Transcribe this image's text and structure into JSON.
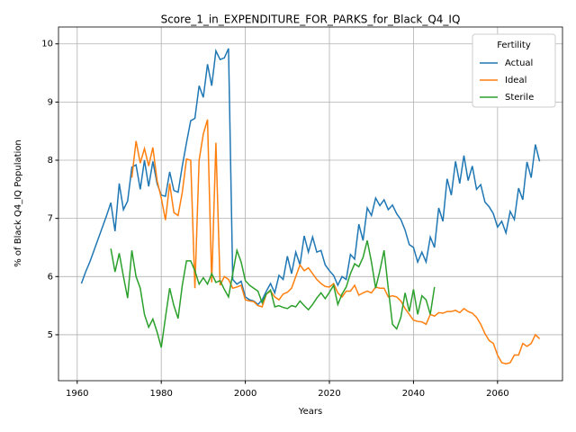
{
  "chart_data": {
    "type": "line",
    "title": "Score_1_in_EXPENDITURE_FOR_PARKS_for_Black_Q4_IQ",
    "xlabel": "Years",
    "ylabel": "% of Black Q4_IQ Population",
    "legend_title": "Fertility",
    "legend_loc": "upper right",
    "grid": true,
    "xlim": [
      1955.55,
      2075.45
    ],
    "ylim": [
      4.21,
      10.29
    ],
    "xticks": [
      1960,
      1980,
      2000,
      2020,
      2040,
      2060
    ],
    "yticks": [
      5,
      6,
      7,
      8,
      9,
      10
    ],
    "x": [
      1961,
      1962,
      1963,
      1964,
      1965,
      1966,
      1967,
      1968,
      1969,
      1970,
      1971,
      1972,
      1973,
      1974,
      1975,
      1976,
      1977,
      1978,
      1979,
      1980,
      1981,
      1982,
      1983,
      1984,
      1985,
      1986,
      1987,
      1988,
      1989,
      1990,
      1991,
      1992,
      1993,
      1994,
      1995,
      1996,
      1997,
      1998,
      1999,
      2000,
      2001,
      2002,
      2003,
      2004,
      2005,
      2006,
      2007,
      2008,
      2009,
      2010,
      2011,
      2012,
      2013,
      2014,
      2015,
      2016,
      2017,
      2018,
      2019,
      2020,
      2021,
      2022,
      2023,
      2024,
      2025,
      2026,
      2027,
      2028,
      2029,
      2030,
      2031,
      2032,
      2033,
      2034,
      2035,
      2036,
      2037,
      2038,
      2039,
      2040,
      2041,
      2042,
      2043,
      2044,
      2045,
      2046,
      2047,
      2048,
      2049,
      2050,
      2051,
      2052,
      2053,
      2054,
      2055,
      2056,
      2057,
      2058,
      2059,
      2060,
      2061,
      2062,
      2063,
      2064,
      2065,
      2066,
      2067,
      2068,
      2069,
      2070
    ],
    "series": [
      {
        "name": "Actual",
        "color": "#1f77b4",
        "values": [
          5.88,
          6.08,
          6.25,
          6.45,
          6.65,
          6.85,
          7.05,
          7.27,
          6.78,
          7.6,
          7.15,
          7.3,
          7.88,
          7.92,
          7.5,
          8.0,
          7.55,
          7.98,
          7.6,
          7.4,
          7.38,
          7.8,
          7.48,
          7.45,
          7.9,
          8.3,
          8.68,
          8.72,
          9.28,
          9.08,
          9.65,
          9.28,
          9.88,
          9.73,
          9.76,
          9.92,
          5.95,
          5.87,
          5.92,
          5.65,
          5.6,
          5.58,
          5.52,
          5.6,
          5.75,
          5.88,
          5.72,
          6.02,
          5.95,
          6.35,
          6.05,
          6.42,
          6.2,
          6.7,
          6.42,
          6.68,
          6.42,
          6.45,
          6.2,
          6.1,
          6.02,
          5.85,
          6.0,
          5.95,
          6.38,
          6.3,
          6.9,
          6.62,
          7.18,
          7.05,
          7.35,
          7.22,
          7.32,
          7.15,
          7.23,
          7.08,
          6.98,
          6.8,
          6.55,
          6.5,
          6.25,
          6.42,
          6.25,
          6.68,
          6.5,
          7.18,
          6.95,
          7.68,
          7.4,
          7.98,
          7.6,
          8.08,
          7.65,
          7.9,
          7.5,
          7.58,
          7.28,
          7.2,
          7.08,
          6.85,
          6.95,
          6.75,
          7.12,
          6.98,
          7.52,
          7.32,
          7.97,
          7.7,
          8.27,
          7.98
        ]
      },
      {
        "name": "Ideal",
        "color": "#ff7f0e",
        "values": [
          null,
          null,
          null,
          null,
          null,
          null,
          null,
          null,
          null,
          null,
          null,
          null,
          7.7,
          8.33,
          7.95,
          8.2,
          7.9,
          8.22,
          7.65,
          7.35,
          6.97,
          7.6,
          7.1,
          7.05,
          7.45,
          8.02,
          8.0,
          5.8,
          8.0,
          8.45,
          8.7,
          5.9,
          8.3,
          5.85,
          6.0,
          5.95,
          5.8,
          5.82,
          5.85,
          5.6,
          5.58,
          5.57,
          5.5,
          5.48,
          5.7,
          5.75,
          5.65,
          5.6,
          5.7,
          5.73,
          5.8,
          6.0,
          6.2,
          6.1,
          6.15,
          6.05,
          5.95,
          5.88,
          5.83,
          5.82,
          5.88,
          5.72,
          5.65,
          5.75,
          5.75,
          5.85,
          5.68,
          5.72,
          5.75,
          5.72,
          5.82,
          5.8,
          5.8,
          5.65,
          5.67,
          5.65,
          5.58,
          5.45,
          5.35,
          5.25,
          5.23,
          5.22,
          5.18,
          5.35,
          5.32,
          5.38,
          5.37,
          5.4,
          5.4,
          5.42,
          5.38,
          5.45,
          5.4,
          5.37,
          5.3,
          5.18,
          5.02,
          4.9,
          4.85,
          4.65,
          4.52,
          4.5,
          4.52,
          4.65,
          4.65,
          4.85,
          4.8,
          4.85,
          5.0,
          4.93
        ]
      },
      {
        "name": "Sterile",
        "color": "#2ca02c",
        "values": [
          null,
          null,
          null,
          null,
          null,
          null,
          null,
          6.48,
          6.08,
          6.4,
          6.0,
          5.63,
          6.45,
          6.0,
          5.8,
          5.35,
          5.13,
          5.27,
          5.05,
          4.78,
          5.3,
          5.8,
          5.5,
          5.28,
          5.85,
          6.27,
          6.27,
          6.1,
          5.87,
          5.98,
          5.87,
          6.05,
          5.9,
          5.93,
          5.78,
          5.65,
          6.05,
          6.45,
          6.25,
          5.93,
          5.85,
          5.8,
          5.75,
          5.55,
          5.7,
          5.77,
          5.48,
          5.5,
          5.47,
          5.45,
          5.5,
          5.48,
          5.58,
          5.5,
          5.43,
          5.52,
          5.63,
          5.72,
          5.62,
          5.73,
          5.85,
          5.52,
          5.7,
          5.82,
          6.05,
          6.22,
          6.17,
          6.33,
          6.62,
          6.25,
          5.8,
          6.1,
          6.45,
          5.8,
          5.18,
          5.1,
          5.3,
          5.72,
          5.4,
          5.78,
          5.35,
          5.67,
          5.6,
          5.35,
          5.82,
          null,
          null,
          null,
          null,
          null,
          null,
          null,
          null,
          null,
          null,
          null,
          null,
          null,
          null,
          null,
          null,
          null,
          null,
          null,
          null,
          null,
          null,
          null,
          null,
          null
        ]
      }
    ]
  }
}
